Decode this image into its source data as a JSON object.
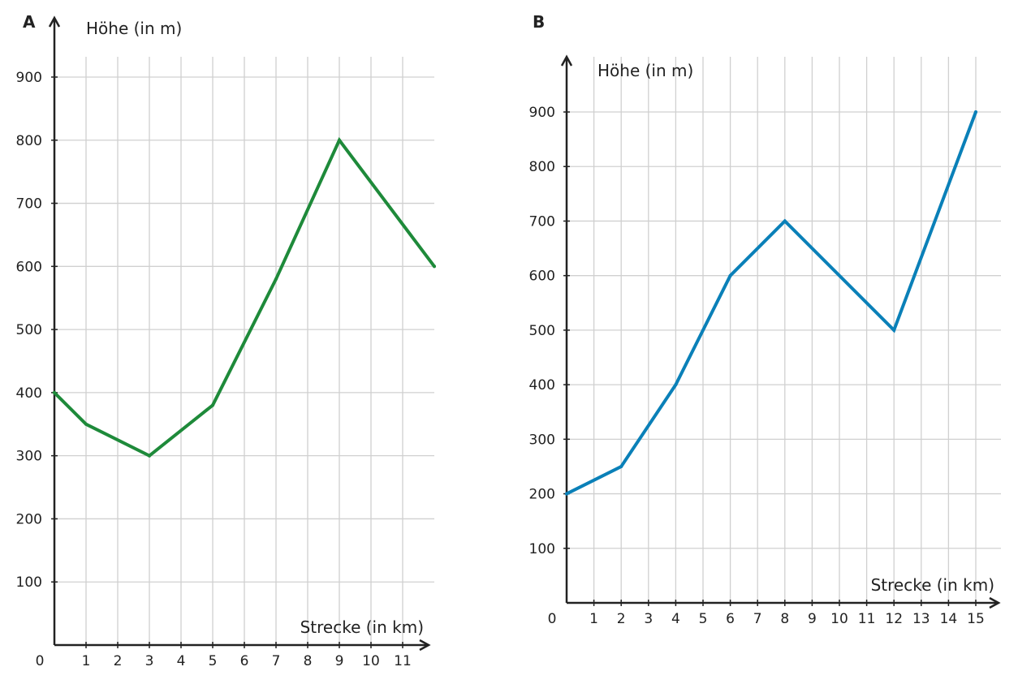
{
  "chart_data": [
    {
      "panel": "A",
      "type": "line",
      "xlabel": "Strecke (in km)",
      "ylabel": "Höhe (in m)",
      "origin_label": "0",
      "x_ticks": [
        1,
        2,
        3,
        4,
        5,
        6,
        7,
        8,
        9,
        10,
        11
      ],
      "y_ticks": [
        100,
        200,
        300,
        400,
        500,
        600,
        700,
        800,
        900
      ],
      "xlim": [
        0,
        12
      ],
      "ylim": [
        0,
        950
      ],
      "grid": true,
      "color": "#1e8a3a",
      "x": [
        0,
        1,
        3,
        5,
        7,
        9,
        12
      ],
      "y": [
        400,
        350,
        300,
        380,
        580,
        800,
        600
      ]
    },
    {
      "panel": "B",
      "type": "line",
      "xlabel": "Strecke (in km)",
      "ylabel": "Höhe (in m)",
      "origin_label": "0",
      "x_ticks": [
        1,
        2,
        3,
        4,
        5,
        6,
        7,
        8,
        9,
        10,
        11,
        12,
        13,
        14,
        15
      ],
      "y_ticks": [
        100,
        200,
        300,
        400,
        500,
        600,
        700,
        800,
        900
      ],
      "xlim": [
        0,
        15.8
      ],
      "ylim": [
        0,
        980
      ],
      "grid": true,
      "color": "#0a80b8",
      "x": [
        0,
        2,
        4,
        6,
        8,
        12,
        15
      ],
      "y": [
        200,
        250,
        400,
        600,
        700,
        500,
        900
      ]
    }
  ]
}
